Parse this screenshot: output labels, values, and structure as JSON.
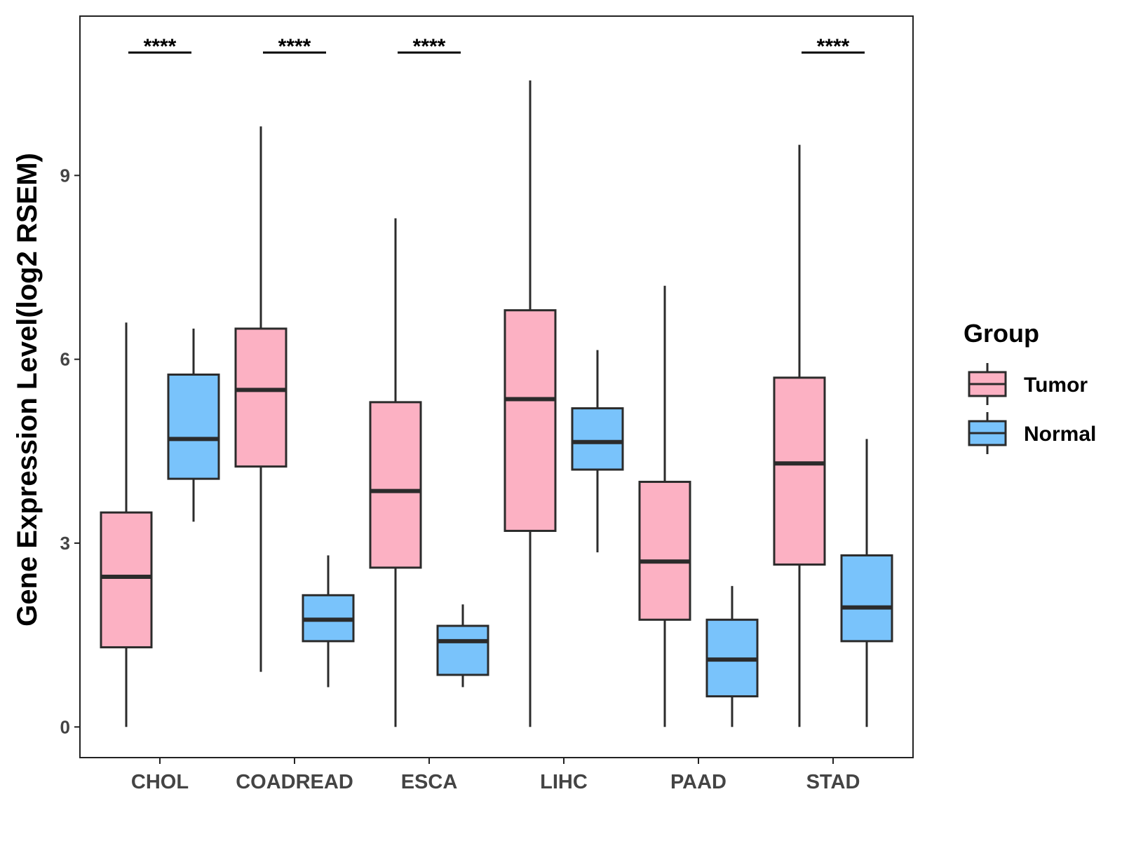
{
  "chart_data": {
    "type": "box",
    "title": "",
    "xlabel": "",
    "ylabel": "Gene Expression Level(log2 RSEM)",
    "ylim": [
      -0.5,
      11.6
    ],
    "yticks": [
      0,
      3,
      6,
      9
    ],
    "categories": [
      "CHOL",
      "COADREAD",
      "ESCA",
      "LIHC",
      "PAAD",
      "STAD"
    ],
    "legend": {
      "title": "Group",
      "position": "right"
    },
    "series": [
      {
        "name": "Tumor",
        "color": "#FCB1C3",
        "boxes": [
          {
            "min": 0.0,
            "q1": 1.3,
            "median": 2.45,
            "q3": 3.5,
            "max": 6.6
          },
          {
            "min": 0.9,
            "q1": 4.25,
            "median": 5.5,
            "q3": 6.5,
            "max": 9.8
          },
          {
            "min": 0.0,
            "q1": 2.6,
            "median": 3.85,
            "q3": 5.3,
            "max": 8.3
          },
          {
            "min": 0.0,
            "q1": 3.2,
            "median": 5.35,
            "q3": 6.8,
            "max": 10.55
          },
          {
            "min": 0.0,
            "q1": 1.75,
            "median": 2.7,
            "q3": 4.0,
            "max": 7.2
          },
          {
            "min": 0.0,
            "q1": 2.65,
            "median": 4.3,
            "q3": 5.7,
            "max": 9.5
          }
        ]
      },
      {
        "name": "Normal",
        "color": "#79C3FB",
        "boxes": [
          {
            "min": 3.35,
            "q1": 4.05,
            "median": 4.7,
            "q3": 5.75,
            "max": 6.5
          },
          {
            "min": 0.65,
            "q1": 1.4,
            "median": 1.75,
            "q3": 2.15,
            "max": 2.8
          },
          {
            "min": 0.65,
            "q1": 0.85,
            "median": 1.4,
            "q3": 1.65,
            "max": 2.0
          },
          {
            "min": 2.85,
            "q1": 4.2,
            "median": 4.65,
            "q3": 5.2,
            "max": 6.15
          },
          {
            "min": 0.0,
            "q1": 0.5,
            "median": 1.1,
            "q3": 1.75,
            "max": 2.3
          },
          {
            "min": 0.0,
            "q1": 1.4,
            "median": 1.95,
            "q3": 2.8,
            "max": 4.7
          }
        ]
      }
    ],
    "annotations": [
      {
        "category": "CHOL",
        "text": "****"
      },
      {
        "category": "COADREAD",
        "text": "****"
      },
      {
        "category": "ESCA",
        "text": "****"
      },
      {
        "category": "STAD",
        "text": "****"
      }
    ]
  }
}
